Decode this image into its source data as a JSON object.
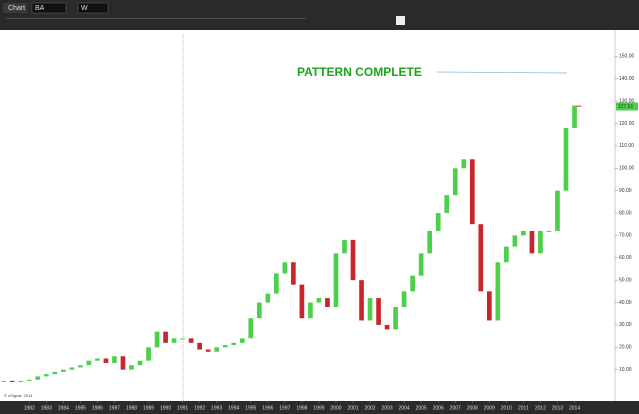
{
  "toolbar": {
    "tab": "Chart",
    "symbol": "BA",
    "interval": "W"
  },
  "chart_data": {
    "type": "candlestick",
    "annotation": "PATTERN COMPLETE",
    "copyright": "© eSignal, 2014",
    "last_value_label": "127.61",
    "up_color": "#4cd04c",
    "down_color": "#c8262c",
    "x": [
      1980.5,
      1981,
      1981.5,
      1982,
      1982.5,
      1983,
      1983.5,
      1984,
      1984.5,
      1985,
      1985.5,
      1986,
      1986.5,
      1987,
      1987.5,
      1988,
      1988.5,
      1989,
      1989.5,
      1990,
      1990.5,
      1991,
      1991.5,
      1992,
      1992.5,
      1993,
      1993.5,
      1994,
      1994.5,
      1995,
      1995.5,
      1996,
      1996.5,
      1997,
      1997.5,
      1998,
      1998.5,
      1999,
      1999.5,
      2000,
      2000.5,
      2001,
      2001.5,
      2002,
      2002.5,
      2003,
      2003.5,
      2004,
      2004.5,
      2005,
      2005.5,
      2006,
      2006.5,
      2007,
      2007.5,
      2008,
      2008.5,
      2009,
      2009.5,
      2010,
      2010.5,
      2011,
      2011.5,
      2012,
      2012.5,
      2013,
      2013.5,
      2014,
      2014.25
    ],
    "values": [
      5,
      4.5,
      5,
      5.5,
      7,
      8,
      9,
      10,
      11,
      12,
      14,
      15,
      13,
      16,
      10,
      12,
      14,
      20,
      27,
      22,
      24,
      24,
      22,
      19,
      18,
      20,
      21,
      22,
      24,
      33,
      40,
      44,
      53,
      58,
      48,
      33,
      40,
      42,
      38,
      62,
      68,
      50,
      32,
      42,
      30,
      28,
      38,
      45,
      52,
      62,
      72,
      80,
      88,
      100,
      104,
      75,
      45,
      32,
      58,
      65,
      70,
      72,
      62,
      72,
      72,
      90,
      118,
      128,
      127.61
    ],
    "xlim": [
      1980.4,
      2016.2
    ],
    "xticks": [
      1982,
      1983,
      1984,
      1985,
      1986,
      1987,
      1988,
      1989,
      1990,
      1991,
      1992,
      1993,
      1994,
      1995,
      1996,
      1997,
      1998,
      1999,
      2000,
      2001,
      2002,
      2003,
      2004,
      2005,
      2006,
      2007,
      2008,
      2009,
      2010,
      2011,
      2012,
      2013,
      2014
    ],
    "ylim": [
      -4,
      160
    ],
    "yticks": [
      {
        "value": 10,
        "label": "10.00"
      },
      {
        "value": 20,
        "label": "20.00"
      },
      {
        "value": 30,
        "label": "30.00"
      },
      {
        "value": 40,
        "label": "40.00"
      },
      {
        "value": 50,
        "label": "50.00"
      },
      {
        "value": 60,
        "label": "60.00"
      },
      {
        "value": 70,
        "label": "70.00"
      },
      {
        "value": 80,
        "label": "80.00"
      },
      {
        "value": 90,
        "label": "90.00"
      },
      {
        "value": 100,
        "label": "100.00"
      },
      {
        "value": 110,
        "label": "110.00"
      },
      {
        "value": 120,
        "label": "120.00"
      },
      {
        "value": 130,
        "label": "130.00"
      },
      {
        "value": 140,
        "label": "140.00"
      },
      {
        "value": 150,
        "label": "150.00"
      }
    ]
  }
}
